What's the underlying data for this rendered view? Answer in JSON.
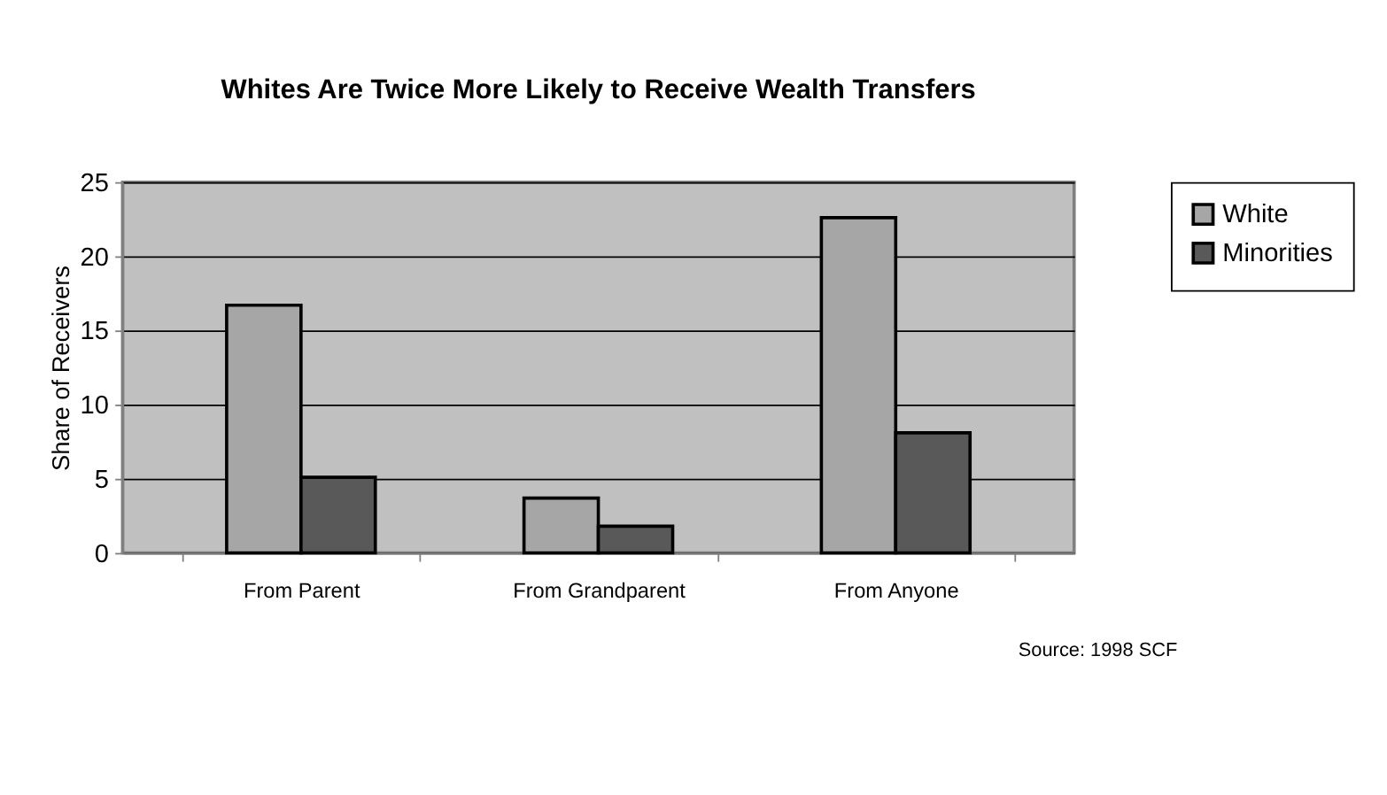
{
  "chart_data": {
    "type": "bar",
    "title": "Whites Are Twice More Likely to Receive Wealth Transfers",
    "ylabel": "Share of Receivers",
    "categories": [
      "From Parent",
      "From Grandparent",
      "From Anyone"
    ],
    "series": [
      {
        "name": "White",
        "color": "#a6a6a6",
        "values": [
          16.7,
          3.7,
          22.6
        ]
      },
      {
        "name": "Minorities",
        "color": "#595959",
        "values": [
          5.1,
          1.8,
          8.1
        ]
      }
    ],
    "ylim": [
      0,
      25
    ],
    "yticks": [
      0,
      5,
      10,
      15,
      20,
      25
    ],
    "grid": "y",
    "legend": "right",
    "annotations": [
      "Source: 1998 SCF"
    ]
  }
}
